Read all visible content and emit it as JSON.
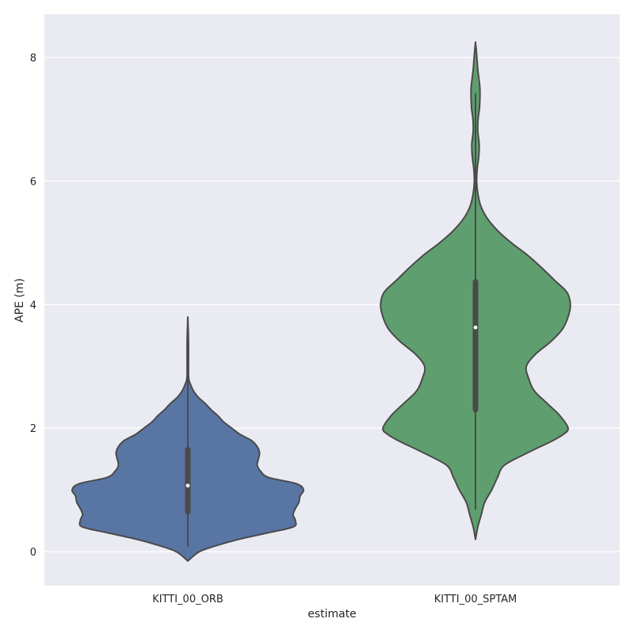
{
  "chart_data": {
    "type": "violin",
    "xlabel": "estimate",
    "ylabel": "APE (m)",
    "ylim": [
      -0.55,
      8.7
    ],
    "yticks": [
      0,
      2,
      4,
      6,
      8
    ],
    "grid": true,
    "colors": {
      "background": "#EAEAF2",
      "grid": "#FFFFFF",
      "outline": "#4A4A4A",
      "median": "#FFFFFF"
    },
    "categories": [
      "KITTI_00_ORB",
      "KITTI_00_SPTAM"
    ],
    "series": [
      {
        "category": "KITTI_00_ORB",
        "color": "#5875A4",
        "min": 0.08,
        "q1": 0.65,
        "median": 1.07,
        "q3": 1.65,
        "max": 3.8,
        "density": [
          [
            -0.15,
            0.0
          ],
          [
            0.0,
            0.1
          ],
          [
            0.1,
            0.25
          ],
          [
            0.2,
            0.44
          ],
          [
            0.3,
            0.68
          ],
          [
            0.4,
            0.91
          ],
          [
            0.5,
            0.93
          ],
          [
            0.6,
            0.91
          ],
          [
            0.7,
            0.93
          ],
          [
            0.8,
            0.96
          ],
          [
            0.9,
            0.97
          ],
          [
            1.0,
            1.0
          ],
          [
            1.1,
            0.94
          ],
          [
            1.2,
            0.7
          ],
          [
            1.3,
            0.63
          ],
          [
            1.4,
            0.6
          ],
          [
            1.5,
            0.61
          ],
          [
            1.6,
            0.62
          ],
          [
            1.7,
            0.6
          ],
          [
            1.8,
            0.55
          ],
          [
            1.9,
            0.45
          ],
          [
            2.0,
            0.38
          ],
          [
            2.1,
            0.31
          ],
          [
            2.2,
            0.26
          ],
          [
            2.3,
            0.2
          ],
          [
            2.4,
            0.15
          ],
          [
            2.5,
            0.09
          ],
          [
            2.6,
            0.05
          ],
          [
            2.7,
            0.025
          ],
          [
            2.8,
            0.008
          ],
          [
            3.0,
            0.006
          ],
          [
            3.4,
            0.006
          ],
          [
            3.8,
            0.0
          ]
        ]
      },
      {
        "category": "KITTI_00_SPTAM",
        "color": "#5F9E6E",
        "min": 0.68,
        "q1": 2.3,
        "median": 3.63,
        "q3": 4.37,
        "max": 7.42,
        "density": [
          [
            0.2,
            0.0
          ],
          [
            0.4,
            0.02
          ],
          [
            0.6,
            0.05
          ],
          [
            0.8,
            0.08
          ],
          [
            1.0,
            0.14
          ],
          [
            1.2,
            0.19
          ],
          [
            1.4,
            0.25
          ],
          [
            1.6,
            0.45
          ],
          [
            1.8,
            0.67
          ],
          [
            1.9,
            0.76
          ],
          [
            2.0,
            0.8
          ],
          [
            2.2,
            0.73
          ],
          [
            2.4,
            0.62
          ],
          [
            2.6,
            0.51
          ],
          [
            2.8,
            0.46
          ],
          [
            3.0,
            0.44
          ],
          [
            3.2,
            0.52
          ],
          [
            3.4,
            0.65
          ],
          [
            3.6,
            0.75
          ],
          [
            3.8,
            0.8
          ],
          [
            4.0,
            0.82
          ],
          [
            4.2,
            0.79
          ],
          [
            4.4,
            0.68
          ],
          [
            4.6,
            0.57
          ],
          [
            4.8,
            0.45
          ],
          [
            5.0,
            0.31
          ],
          [
            5.2,
            0.19
          ],
          [
            5.4,
            0.1
          ],
          [
            5.6,
            0.045
          ],
          [
            5.8,
            0.02
          ],
          [
            6.0,
            0.01
          ],
          [
            6.2,
            0.015
          ],
          [
            6.4,
            0.028
          ],
          [
            6.6,
            0.032
          ],
          [
            6.8,
            0.02
          ],
          [
            7.0,
            0.022
          ],
          [
            7.2,
            0.035
          ],
          [
            7.5,
            0.038
          ],
          [
            7.8,
            0.02
          ],
          [
            8.0,
            0.012
          ],
          [
            8.25,
            0.0
          ]
        ]
      }
    ]
  }
}
